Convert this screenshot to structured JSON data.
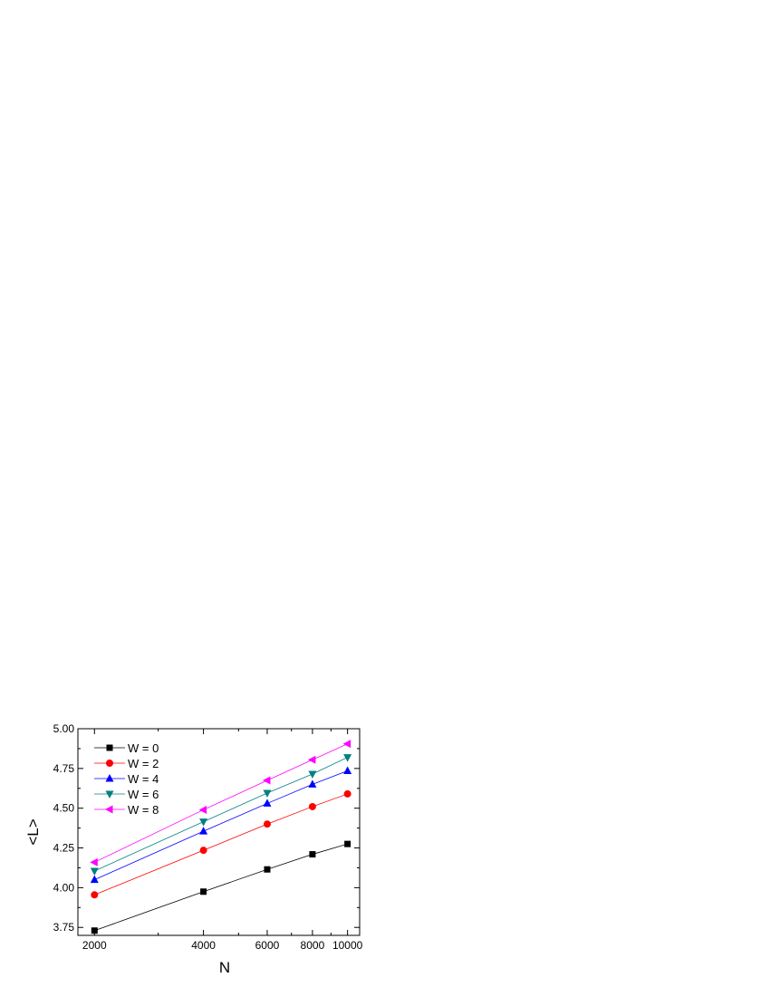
{
  "chart_data": {
    "type": "line",
    "xlabel": "N",
    "ylabel": "<L>",
    "x_scale": "log",
    "xlim": [
      1800,
      10800
    ],
    "ylim": [
      3.7,
      5.0
    ],
    "x_ticks": [
      2000,
      4000,
      6000,
      8000,
      10000
    ],
    "x_tick_labels": [
      "2000",
      "4000",
      "6000",
      "8000",
      "10000"
    ],
    "y_ticks": [
      3.75,
      4.0,
      4.25,
      4.5,
      4.75,
      5.0
    ],
    "y_tick_labels": [
      "3.75",
      "4.00",
      "4.25",
      "4.50",
      "4.75",
      "5.00"
    ],
    "grid": false,
    "legend_position": "top-left",
    "x": [
      2000,
      4000,
      6000,
      8000,
      10000
    ],
    "series": [
      {
        "name": "W = 0",
        "color": "#000000",
        "marker": "square",
        "values": [
          3.73,
          3.975,
          4.115,
          4.21,
          4.275
        ]
      },
      {
        "name": "W = 2",
        "color": "#ff0000",
        "marker": "circle",
        "values": [
          3.955,
          4.235,
          4.4,
          4.51,
          4.59
        ]
      },
      {
        "name": "W = 4",
        "color": "#0000ff",
        "marker": "triangle-up",
        "values": [
          4.05,
          4.355,
          4.53,
          4.65,
          4.735
        ]
      },
      {
        "name": "W = 6",
        "color": "#008080",
        "marker": "triangle-down",
        "values": [
          4.105,
          4.415,
          4.595,
          4.715,
          4.82
        ]
      },
      {
        "name": "W = 8",
        "color": "#ff00ff",
        "marker": "triangle-left",
        "values": [
          4.16,
          4.49,
          4.675,
          4.805,
          4.905
        ]
      }
    ]
  }
}
